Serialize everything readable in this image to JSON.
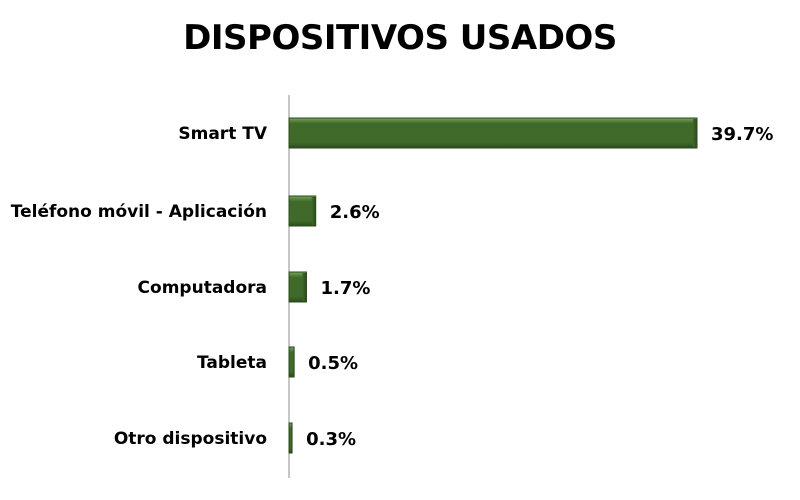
{
  "chart_data": {
    "type": "bar",
    "orientation": "horizontal",
    "title": "DISPOSITIVOS USADOS",
    "categories": [
      "Smart TV",
      "Teléfono móvil - Aplicación",
      "Computadora",
      "Tableta",
      "Otro dispositivo"
    ],
    "values": [
      39.7,
      2.6,
      1.7,
      0.5,
      0.3
    ],
    "data_labels": [
      "39.7%",
      "2.6%",
      "1.7%",
      "0.5%",
      "0.3%"
    ],
    "unit": "%",
    "xlim": [
      0,
      39.7
    ],
    "grid": false,
    "legend": "none"
  },
  "colors": {
    "bar": "#3f6a2a",
    "bar_dark": "#2a4a1b",
    "bar_light": "#79a45e",
    "axis": "#8c8c8c",
    "text": "#000000"
  }
}
